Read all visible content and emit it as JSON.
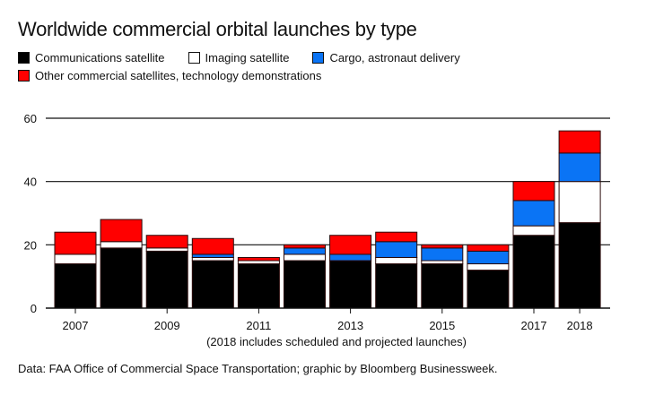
{
  "chart_data": {
    "type": "bar",
    "stacked": true,
    "title": "Worldwide commercial orbital launches by type",
    "xlabel": "(2018 includes scheduled and projected launches)",
    "ylabel": "",
    "ylim": [
      0,
      60
    ],
    "yticks": [
      0,
      20,
      40,
      60
    ],
    "grid": true,
    "legend_position": "top-left",
    "categories": [
      "2007",
      "2008",
      "2009",
      "2010",
      "2011",
      "2012",
      "2013",
      "2014",
      "2015",
      "2016",
      "2017",
      "2018"
    ],
    "xtick_labels": [
      "2007",
      "2009",
      "2011",
      "2013",
      "2015",
      "2017",
      "2018"
    ],
    "series": [
      {
        "name": "Communications satellite",
        "color": "#000000",
        "values": [
          14,
          19,
          18,
          15,
          14,
          15,
          15,
          14,
          14,
          12,
          23,
          27
        ]
      },
      {
        "name": "Imaging satellite",
        "color": "#ffffff",
        "values": [
          3,
          2,
          1,
          1,
          1,
          2,
          0,
          2,
          1,
          2,
          3,
          13
        ]
      },
      {
        "name": "Cargo, astronaut delivery",
        "color": "#0a74f5",
        "values": [
          0,
          0,
          0,
          1,
          0,
          2,
          2,
          5,
          4,
          4,
          8,
          9
        ]
      },
      {
        "name": "Other commercial satellites, technology demonstrations",
        "color": "#ff0000",
        "values": [
          7,
          7,
          4,
          5,
          1,
          1,
          6,
          3,
          1,
          2,
          6,
          7
        ]
      }
    ],
    "source": "Data: FAA Office of Commercial Space Transportation; graphic by Bloomberg Businessweek."
  }
}
